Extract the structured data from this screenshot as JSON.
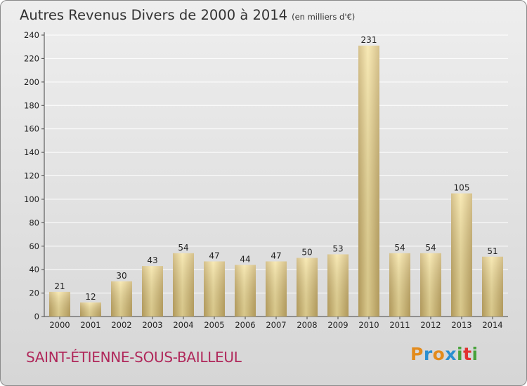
{
  "header": {
    "title": "Autres Revenus Divers de 2000 à 2014",
    "unit": "(en milliers d'€)"
  },
  "commune": "SAINT-ÉTIENNE-SOUS-BAILLEUL",
  "logo": {
    "text": "Proxiti",
    "letter_colors": [
      "#e38b1c",
      "#2a8fd0",
      "#e38b1c",
      "#2a8fd0",
      "#48a33b",
      "#e2312f",
      "#48a33b"
    ]
  },
  "colors": {
    "bar_light": "#f6e39e",
    "bar_dark": "#c8ad67",
    "grid": "#ffffff",
    "axis": "#444444"
  },
  "chart_data": {
    "type": "bar",
    "title": "Autres Revenus Divers de 2000 à 2014",
    "subtitle": "(en milliers d'€)",
    "categories": [
      "2000",
      "2001",
      "2002",
      "2003",
      "2004",
      "2005",
      "2006",
      "2007",
      "2008",
      "2009",
      "2010",
      "2011",
      "2012",
      "2013",
      "2014"
    ],
    "values": [
      21,
      12,
      30,
      43,
      54,
      47,
      44,
      47,
      50,
      53,
      231,
      54,
      54,
      105,
      51
    ],
    "ylim": [
      0,
      240
    ],
    "yticks": [
      0,
      20,
      40,
      60,
      80,
      100,
      120,
      140,
      160,
      180,
      200,
      220,
      240
    ],
    "grid": true,
    "data_labels": true
  }
}
